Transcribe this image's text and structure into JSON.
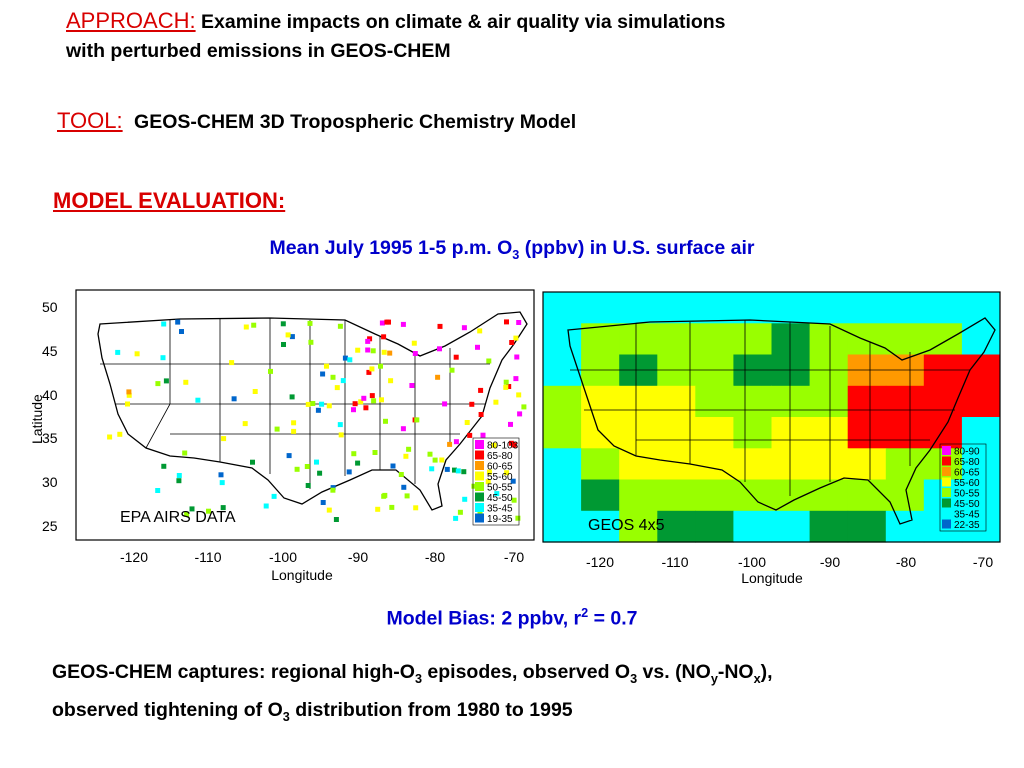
{
  "approach": {
    "label": "APPROACH:",
    "text_line1": "Examine impacts on climate & air quality via simulations",
    "text_line2": "with perturbed emissions in GEOS-CHEM"
  },
  "tool": {
    "label": "TOOL:",
    "text": "GEOS-CHEM 3D Tropospheric Chemistry Model"
  },
  "model_evaluation": {
    "label": "MODEL EVALUATION:"
  },
  "map_title": {
    "prefix": "Mean July 1995 1-5 p.m. O",
    "sub": "3",
    "suffix": " (ppbv) in U.S. surface air"
  },
  "bias": {
    "prefix": "Model Bias: 2 ppbv, r",
    "sup": "2",
    "suffix": " = 0.7"
  },
  "conclusion": {
    "p1": "GEOS-CHEM captures: regional high-O",
    "s1": "3",
    "p2": " episodes, observed O",
    "s2": "3",
    "p3": " vs. (NO",
    "s3": "y",
    "p4": "-NO",
    "s4": "x",
    "p5": "),",
    "p6": " observed tightening of O",
    "s6": "3",
    "p7": " distribution from 1980 to 1995"
  },
  "colors": {
    "accent_red": "#d80000",
    "title_blue": "#0000cc",
    "bins": [
      "#ff00ff",
      "#ff0000",
      "#ff9900",
      "#ffff00",
      "#99ff00",
      "#009933",
      "#00ffff",
      "#0066cc"
    ]
  },
  "left_map": {
    "label": "EPA AIRS DATA",
    "y_axis_label": "Latitude",
    "x_axis_label": "Longitude",
    "y_ticks": [
      "50",
      "45",
      "40",
      "35",
      "30",
      "25"
    ],
    "x_ticks": [
      "-120",
      "-110",
      "-100",
      "-90",
      "-80",
      "-70"
    ],
    "legend": [
      "80-103",
      "65-80",
      "60-65",
      "55-60",
      "50-55",
      "45-50",
      "35-45",
      "19-35"
    ]
  },
  "right_map": {
    "label": "GEOS 4x5",
    "x_axis_label": "Longitude",
    "x_ticks": [
      "-120",
      "-110",
      "-100",
      "-90",
      "-80",
      "-70"
    ],
    "legend": [
      "80-90",
      "65-80",
      "60-65",
      "55-60",
      "50-55",
      "45-50",
      "35-45",
      "22-35"
    ]
  }
}
